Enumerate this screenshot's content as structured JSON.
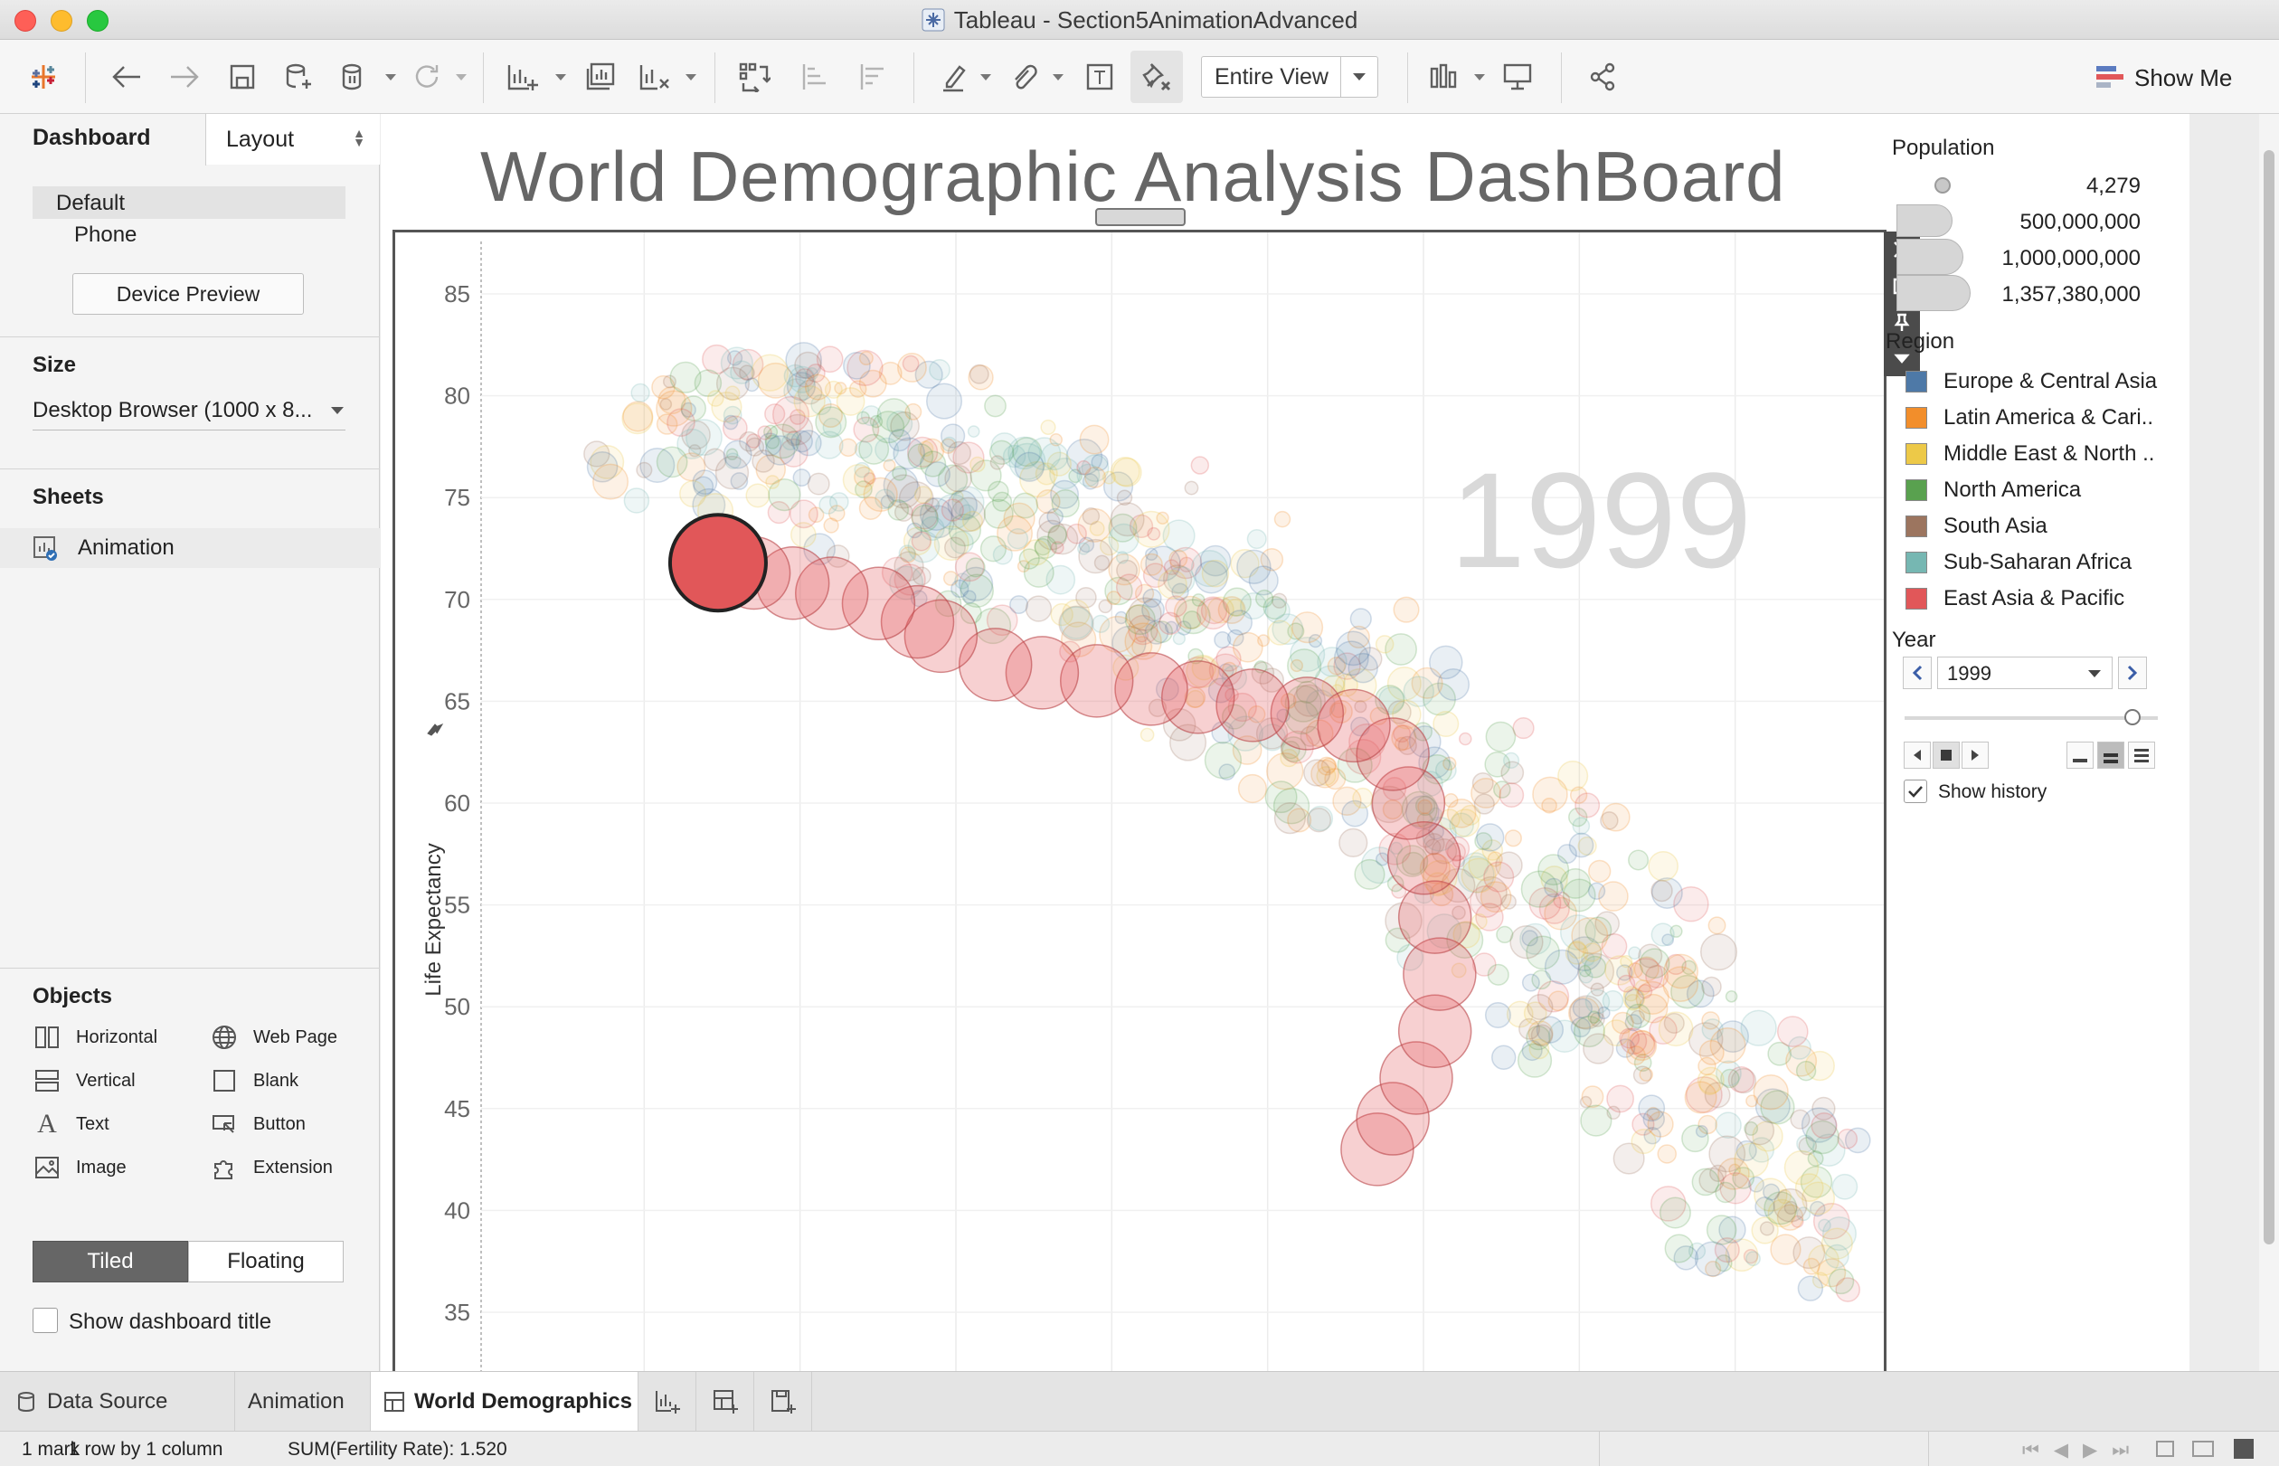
{
  "window": {
    "title": "Tableau - Section5AnimationAdvanced"
  },
  "toolbar": {
    "view_mode": "Entire View",
    "show_me": "Show Me"
  },
  "left_pane": {
    "tabs": [
      "Dashboard",
      "Layout"
    ],
    "device": {
      "default": "Default",
      "phone": "Phone",
      "preview_button": "Device Preview"
    },
    "size": {
      "heading": "Size",
      "value": "Desktop Browser (1000 x 8..."
    },
    "sheets": {
      "heading": "Sheets",
      "items": [
        "Animation"
      ]
    },
    "objects": {
      "heading": "Objects",
      "items": [
        {
          "label": "Horizontal",
          "icon": "horizontal-container-icon"
        },
        {
          "label": "Web Page",
          "icon": "globe-icon"
        },
        {
          "label": "Vertical",
          "icon": "vertical-container-icon"
        },
        {
          "label": "Blank",
          "icon": "blank-icon"
        },
        {
          "label": "Text",
          "icon": "text-icon"
        },
        {
          "label": "Button",
          "icon": "button-icon"
        },
        {
          "label": "Image",
          "icon": "image-icon"
        },
        {
          "label": "Extension",
          "icon": "puzzle-icon"
        }
      ]
    },
    "layout_mode": {
      "tiled": "Tiled",
      "floating": "Floating",
      "selected": "Tiled"
    },
    "show_title": {
      "label": "Show dashboard title",
      "checked": false
    }
  },
  "dashboard": {
    "title": "World Demographic Analysis DashBoard",
    "year_watermark": "1999"
  },
  "legends": {
    "population": {
      "heading": "Population",
      "values": [
        "4,279",
        "500,000,000",
        "1,000,000,000",
        "1,357,380,000"
      ]
    },
    "region": {
      "heading": "Region",
      "items": [
        {
          "label": "Europe & Central Asia",
          "color": "#4e79a7"
        },
        {
          "label": "Latin America & Cari..",
          "color": "#f28e2b"
        },
        {
          "label": "Middle East & North ..",
          "color": "#edc948"
        },
        {
          "label": "North America",
          "color": "#59a14f"
        },
        {
          "label": "South Asia",
          "color": "#9c755f"
        },
        {
          "label": "Sub-Saharan Africa",
          "color": "#76b7b2"
        },
        {
          "label": "East Asia & Pacific",
          "color": "#e15759"
        }
      ]
    },
    "year": {
      "heading": "Year",
      "value": "1999",
      "history_label": "Show history",
      "history_checked": true,
      "slider_position": 0.9
    }
  },
  "chart_data": {
    "type": "scatter",
    "ylabel": "Life Expectancy",
    "xlabel": "",
    "ylim": [
      35,
      87
    ],
    "xlim": [
      0,
      9
    ],
    "yticks": [
      "85",
      "80",
      "75",
      "70",
      "65",
      "60",
      "55",
      "50",
      "45",
      "40",
      "35"
    ],
    "highlight_series": {
      "name": "East Asia & Pacific",
      "points": [
        {
          "x": 1.52,
          "y": 71.8
        },
        {
          "x": 1.75,
          "y": 71.3
        },
        {
          "x": 2.0,
          "y": 70.8
        },
        {
          "x": 2.25,
          "y": 70.3
        },
        {
          "x": 2.55,
          "y": 69.8
        },
        {
          "x": 2.8,
          "y": 68.9
        },
        {
          "x": 2.95,
          "y": 68.2
        },
        {
          "x": 3.3,
          "y": 66.8
        },
        {
          "x": 3.6,
          "y": 66.4
        },
        {
          "x": 3.95,
          "y": 66.0
        },
        {
          "x": 4.3,
          "y": 65.6
        },
        {
          "x": 4.6,
          "y": 65.2
        },
        {
          "x": 4.95,
          "y": 64.8
        },
        {
          "x": 5.3,
          "y": 64.4
        },
        {
          "x": 5.6,
          "y": 63.8
        },
        {
          "x": 5.85,
          "y": 62.4
        },
        {
          "x": 5.95,
          "y": 60.0
        },
        {
          "x": 6.05,
          "y": 57.3
        },
        {
          "x": 6.12,
          "y": 54.4
        },
        {
          "x": 6.15,
          "y": 51.6
        },
        {
          "x": 6.12,
          "y": 48.8
        },
        {
          "x": 6.0,
          "y": 46.5
        },
        {
          "x": 5.85,
          "y": 44.5
        },
        {
          "x": 5.75,
          "y": 43.0
        }
      ]
    },
    "current_point": {
      "x": 1.52,
      "y": 71.8
    }
  },
  "bottom_tabs": {
    "data_source": "Data Source",
    "sheets": [
      "Animation",
      "World Demographics"
    ],
    "active": "World Demographics"
  },
  "status": {
    "marks": "1 mark",
    "dims": "1 row by 1 column",
    "measure": "SUM(Fertility Rate): 1.520"
  }
}
